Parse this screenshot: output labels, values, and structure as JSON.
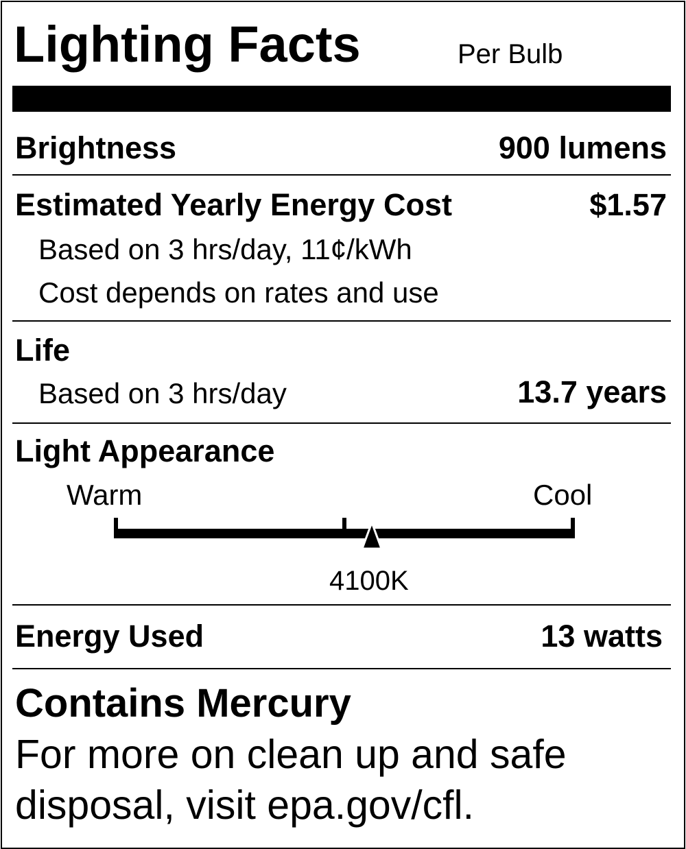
{
  "header": {
    "title": "Lighting Facts",
    "subtitle": "Per Bulb"
  },
  "brightness": {
    "label": "Brightness",
    "value": "900 lumens"
  },
  "cost": {
    "label": "Estimated Yearly Energy Cost",
    "value": "$1.57",
    "note1": "Based on 3 hrs/day, 11¢/kWh",
    "note2": "Cost depends on rates and use"
  },
  "life": {
    "label": "Life",
    "note": "Based on 3 hrs/day",
    "value": "13.7 years"
  },
  "appearance": {
    "label": "Light Appearance",
    "warm_label": "Warm",
    "cool_label": "Cool",
    "value": "4100K",
    "marker_fraction": 0.56
  },
  "energy": {
    "label": "Energy Used",
    "value": "13 watts"
  },
  "mercury": {
    "title": "Contains Mercury",
    "line1": "For more on clean up and safe",
    "line2": "disposal, visit epa.gov/cfl."
  }
}
